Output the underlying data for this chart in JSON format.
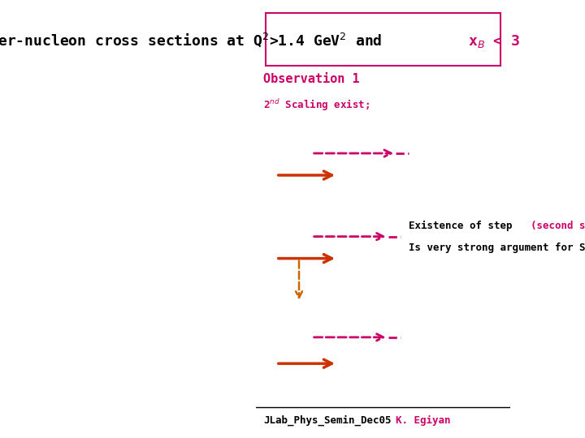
{
  "title_box_color": "#cc0066",
  "obs_label": "Observation 1",
  "obs_color": "#cc0066",
  "scaling_color": "#cc0066",
  "annotation_color_black": "#000000",
  "annotation_color_pink": "#cc0066",
  "footer_left": "JLab_Phys_Semin_Dec05",
  "footer_left_color": "#000000",
  "footer_right": "K. Egiyan",
  "footer_right_color": "#cc0066",
  "bg_color": "#ffffff",
  "arrow_solid_color": "#cc3300",
  "arrow_dashed_color": "#cc0066",
  "arrow_vertical_color": "#cc6600"
}
